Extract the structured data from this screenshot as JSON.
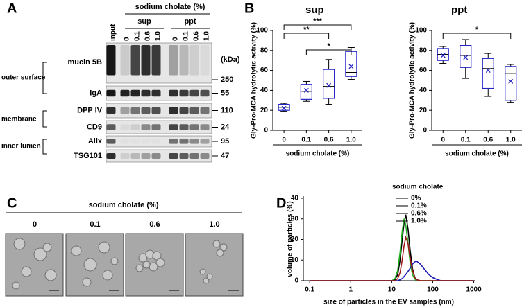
{
  "panel_a": {
    "label": "A",
    "header": "sodium cholate (%)",
    "groups": [
      "sup",
      "ppt"
    ],
    "lanes": [
      "input",
      "0",
      "0.1",
      "0.6",
      "1.0",
      "0",
      "0.1",
      "0.6",
      "1.0"
    ],
    "unit": "(kDa)",
    "rows": [
      {
        "name": "mucin 5B",
        "mw": "250"
      },
      {
        "name": "IgA",
        "mw": "55"
      },
      {
        "name": "DPP IV",
        "mw": "110"
      },
      {
        "name": "CD9",
        "mw": "24"
      },
      {
        "name": "Alix",
        "mw": "95"
      },
      {
        "name": "TSG101",
        "mw": "47"
      }
    ],
    "regions": [
      "outer surface",
      "membrane",
      "inner lumen"
    ]
  },
  "panel_c": {
    "label": "C",
    "header": "sodium cholate (%)",
    "images": [
      "0",
      "0.1",
      "0.6",
      "1.0"
    ]
  },
  "chart_data": [
    {
      "type": "box",
      "panel": "B",
      "title": "sup",
      "y_label": "Gly-Pro-MCA hydrolytic activity (%)",
      "x_label": "sodium cholate (%)",
      "categories": [
        "0",
        "0.1",
        "0.6",
        "1.0"
      ],
      "color": "#2323c8",
      "ylim": [
        0,
        100
      ],
      "yticks": [
        0,
        20,
        40,
        60,
        80,
        100
      ],
      "boxes": [
        {
          "whisker_low": 19,
          "q1": 20,
          "median": 23,
          "q3": 26,
          "whisker_high": 27,
          "mean": 22
        },
        {
          "whisker_low": 29,
          "q1": 31,
          "median": 39,
          "q3": 46,
          "whisker_high": 49,
          "mean": 40
        },
        {
          "whisker_low": 26,
          "q1": 32,
          "median": 44,
          "q3": 61,
          "whisker_high": 71,
          "mean": 45
        },
        {
          "whisker_low": 51,
          "q1": 54,
          "median": 58,
          "q3": 79,
          "whisker_high": 83,
          "mean": 64
        }
      ],
      "significance": [
        {
          "label": "***",
          "between": [
            "0",
            "1.0"
          ]
        },
        {
          "label": "**",
          "between": [
            "0",
            "0.6"
          ]
        },
        {
          "label": "*",
          "between": [
            "0.1",
            "1.0"
          ]
        }
      ]
    },
    {
      "type": "box",
      "title": "ppt",
      "y_label": "Gly-Pro-MCA hydrolytic activity (%)",
      "x_label": "sodium cholate (%)",
      "categories": [
        "0",
        "0.1",
        "0.6",
        "1.0"
      ],
      "color": "#2323c8",
      "ylim": [
        0,
        100
      ],
      "yticks": [
        0,
        20,
        40,
        60,
        80,
        100
      ],
      "boxes": [
        {
          "whisker_low": 67,
          "q1": 70,
          "median": 76,
          "q3": 82,
          "whisker_high": 84,
          "mean": 75
        },
        {
          "whisker_low": 52,
          "q1": 63,
          "median": 75,
          "q3": 85,
          "whisker_high": 91,
          "mean": 73
        },
        {
          "whisker_low": 34,
          "q1": 42,
          "median": 62,
          "q3": 72,
          "whisker_high": 77,
          "mean": 60
        },
        {
          "whisker_low": 28,
          "q1": 30,
          "median": 57,
          "q3": 64,
          "whisker_high": 66,
          "mean": 49
        }
      ],
      "significance": [
        {
          "label": "*",
          "between": [
            "0",
            "1.0"
          ]
        }
      ]
    },
    {
      "type": "line",
      "panel": "D",
      "y_label": "volume of particles (%)",
      "x_label": "size of particles in the EV samples (nm)",
      "legend_title": "sodium cholate",
      "log_x": true,
      "xlim": [
        0.07,
        1100
      ],
      "xticks": [
        0.1,
        1,
        10,
        100,
        1000
      ],
      "ylim": [
        0,
        41
      ],
      "yticks": [
        0,
        10,
        20,
        30,
        40
      ],
      "x": [
        0.1,
        10,
        12,
        14,
        16,
        18,
        20,
        22,
        25,
        28,
        32,
        36,
        40,
        50,
        60,
        80,
        100,
        130,
        160,
        1000
      ],
      "series": [
        {
          "name": "0%",
          "color": "#000000",
          "values": [
            0,
            0,
            0.5,
            3,
            10,
            20,
            28,
            32,
            25,
            15,
            6,
            2,
            0.5,
            0,
            0,
            0,
            0,
            0,
            0,
            0
          ]
        },
        {
          "name": "0.1%",
          "color": "#22b022",
          "values": [
            0,
            0,
            1,
            5,
            14,
            24,
            30,
            27,
            18,
            9,
            3,
            1,
            0,
            0,
            0,
            0,
            0,
            0,
            0,
            0
          ]
        },
        {
          "name": "0.6%",
          "color": "#1a1ab4",
          "values": [
            0,
            0,
            0,
            0,
            0.5,
            1,
            2,
            3,
            4.5,
            6,
            8,
            9,
            9.5,
            8,
            6,
            3,
            1.5,
            0.5,
            0,
            0
          ]
        },
        {
          "name": "1.0%",
          "color": "#a01818",
          "values": [
            0,
            0,
            0,
            1,
            4,
            10,
            17,
            21,
            18,
            11,
            5,
            2,
            0.5,
            0,
            0,
            0,
            0,
            0,
            0,
            0
          ]
        }
      ]
    }
  ]
}
